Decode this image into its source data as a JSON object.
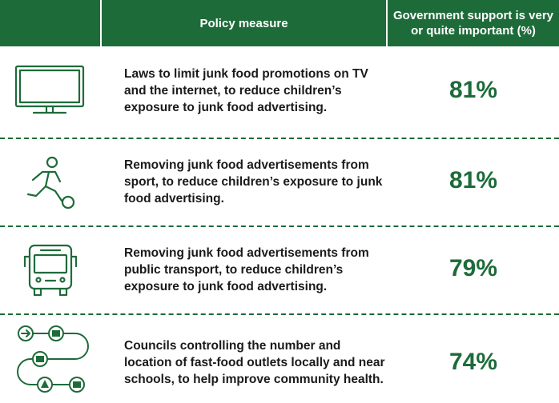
{
  "header": {
    "policy_label": "Policy measure",
    "support_label": "Government support is very or quite important (%)"
  },
  "rows": [
    {
      "icon": "tv-icon",
      "text": "Laws to limit junk food promotions on TV and the internet, to reduce children’s exposure to junk food advertising.",
      "percent": "81%"
    },
    {
      "icon": "football-player-icon",
      "text": "Removing junk food advertisements from sport, to reduce children’s exposure to junk food advertising.",
      "percent": "81%"
    },
    {
      "icon": "bus-icon",
      "text": "Removing junk food advertisements from public transport, to reduce children’s exposure to junk food advertising.",
      "percent": "79%"
    },
    {
      "icon": "route-map-icon",
      "text": "Councils controlling the number and location of fast-food outlets locally and near schools, to help improve community health.",
      "percent": "74%"
    }
  ],
  "colors": {
    "accent": "#1e6b3a",
    "text": "#1a1a1a",
    "background": "#ffffff"
  }
}
